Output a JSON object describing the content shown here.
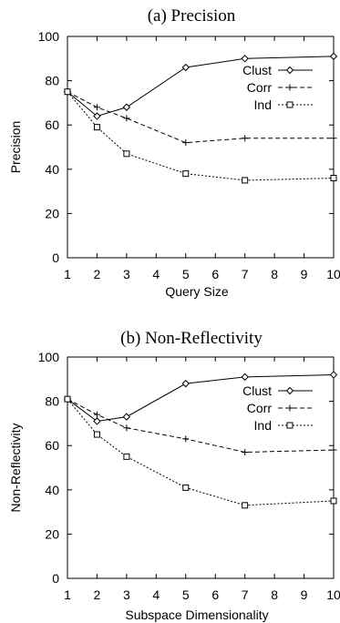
{
  "chart_data": [
    {
      "type": "line",
      "title": "(a) Precision",
      "xlabel": "Query Size",
      "ylabel": "Precision",
      "xlim": [
        1,
        10
      ],
      "ylim": [
        0,
        100
      ],
      "xticks": [
        1,
        2,
        3,
        4,
        5,
        6,
        7,
        8,
        9,
        10
      ],
      "yticks": [
        0,
        20,
        40,
        60,
        80,
        100
      ],
      "grid": false,
      "legend_position": "top-right",
      "series": [
        {
          "name": "Clust",
          "style": "solid",
          "marker": "diamond",
          "x": [
            1,
            2,
            3,
            5,
            7,
            10
          ],
          "y": [
            75,
            64,
            68,
            86,
            90,
            91
          ]
        },
        {
          "name": "Corr",
          "style": "dashed",
          "marker": "plus",
          "x": [
            1,
            2,
            3,
            5,
            7,
            10
          ],
          "y": [
            75,
            68,
            63,
            52,
            54,
            54
          ]
        },
        {
          "name": "Ind",
          "style": "dotted",
          "marker": "square",
          "x": [
            1,
            2,
            3,
            5,
            7,
            10
          ],
          "y": [
            75,
            59,
            47,
            38,
            35,
            36
          ]
        }
      ]
    },
    {
      "type": "line",
      "title": "(b) Non-Reflectivity",
      "xlabel": "Subspace Dimensionality",
      "ylabel": "Non-Reflectivity",
      "xlim": [
        1,
        10
      ],
      "ylim": [
        0,
        100
      ],
      "xticks": [
        1,
        2,
        3,
        4,
        5,
        6,
        7,
        8,
        9,
        10
      ],
      "yticks": [
        0,
        20,
        40,
        60,
        80,
        100
      ],
      "grid": false,
      "legend_position": "top-right",
      "series": [
        {
          "name": "Clust",
          "style": "solid",
          "marker": "diamond",
          "x": [
            1,
            2,
            3,
            5,
            7,
            10
          ],
          "y": [
            81,
            71,
            73,
            88,
            91,
            92
          ]
        },
        {
          "name": "Corr",
          "style": "dashed",
          "marker": "plus",
          "x": [
            1,
            2,
            3,
            5,
            7,
            10
          ],
          "y": [
            81,
            74,
            68,
            63,
            57,
            58
          ]
        },
        {
          "name": "Ind",
          "style": "dotted",
          "marker": "square",
          "x": [
            1,
            2,
            3,
            5,
            7,
            10
          ],
          "y": [
            81,
            65,
            55,
            41,
            33,
            35
          ]
        }
      ]
    }
  ]
}
